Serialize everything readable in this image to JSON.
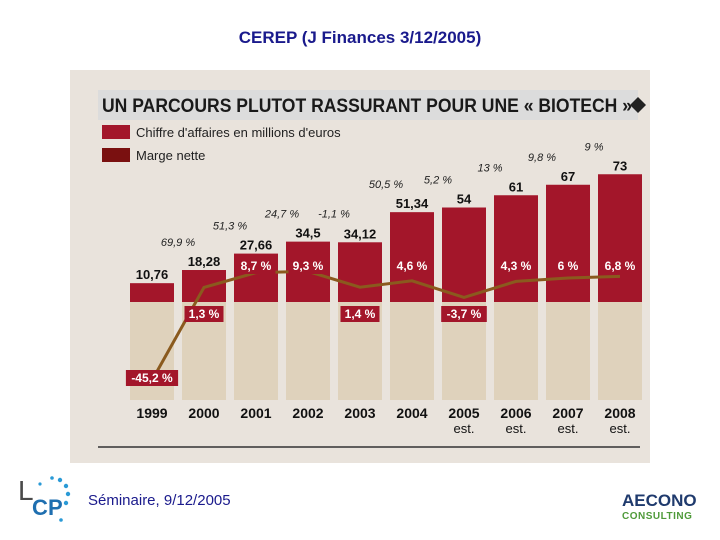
{
  "slide": {
    "title": "CEREP (J Finances 3/12/2005)",
    "footer": "Séminaire, 9/12/2005"
  },
  "logos": {
    "left": "LCP",
    "right_line1": "AECONO",
    "right_line2": "CONSULTING"
  },
  "chart_data": {
    "type": "bar",
    "title": "UN PARCOURS PLUTOT RASSURANT POUR UNE « BIOTECH »",
    "categories": [
      "1999",
      "2000",
      "2001",
      "2002",
      "2003",
      "2004",
      "2005\nest.",
      "2006\nest.",
      "2007\nest.",
      "2008\nest."
    ],
    "series": [
      {
        "name": "Chiffre d'affaires en millions d'euros",
        "type": "bar",
        "values": [
          10.76,
          18.28,
          27.66,
          34.5,
          34.12,
          51.34,
          54,
          61,
          67,
          73
        ],
        "labels": [
          "10,76",
          "18,28",
          "27,66",
          "34,5",
          "34,12",
          "51,34",
          "54",
          "61",
          "67",
          "73"
        ]
      },
      {
        "name": "Marge nette",
        "type": "line",
        "unit": "%",
        "values": [
          -45.2,
          1.3,
          8.7,
          9.3,
          1.4,
          4.6,
          -3.7,
          4.3,
          6,
          6.8
        ],
        "labels": [
          "-45,2 %",
          "1,3 %",
          "8,7 %",
          "9,3 %",
          "1,4 %",
          "4,6 %",
          "-3,7 %",
          "4,3 %",
          "6 %",
          "6,8 %"
        ]
      }
    ],
    "growth_labels": [
      "69,9 %",
      "51,3 %",
      "24,7 %",
      "-1,1 %",
      "50,5 %",
      "5,2 %",
      "13 %",
      "9,8 %",
      "9 %"
    ],
    "colors": {
      "bar": "#a3162a",
      "line": "#8a5a1e",
      "background": "#e9e3dc",
      "title_bar": "#dcdcdc"
    }
  }
}
